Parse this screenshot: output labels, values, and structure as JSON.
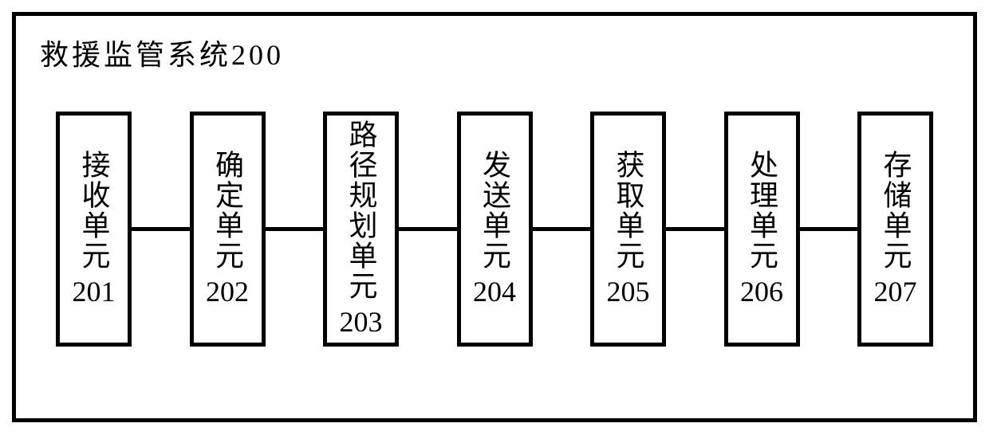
{
  "diagram": {
    "type": "block-diagram",
    "title": "救援监管系统200",
    "outer_border_color": "#000000",
    "outer_border_width": 5,
    "background_color": "#ffffff",
    "text_color": "#000000",
    "title_fontsize": 36,
    "block_fontsize": 36,
    "block_border_color": "#000000",
    "block_border_width": 5,
    "connector_color": "#000000",
    "connector_width": 5,
    "blocks": [
      {
        "label": "接收单元",
        "number": "201"
      },
      {
        "label": "确定单元",
        "number": "202"
      },
      {
        "label": "路径规划单元",
        "number": "203"
      },
      {
        "label": "发送单元",
        "number": "204"
      },
      {
        "label": "获取单元",
        "number": "205"
      },
      {
        "label": "处理单元",
        "number": "206"
      },
      {
        "label": "存储单元",
        "number": "207"
      }
    ]
  }
}
